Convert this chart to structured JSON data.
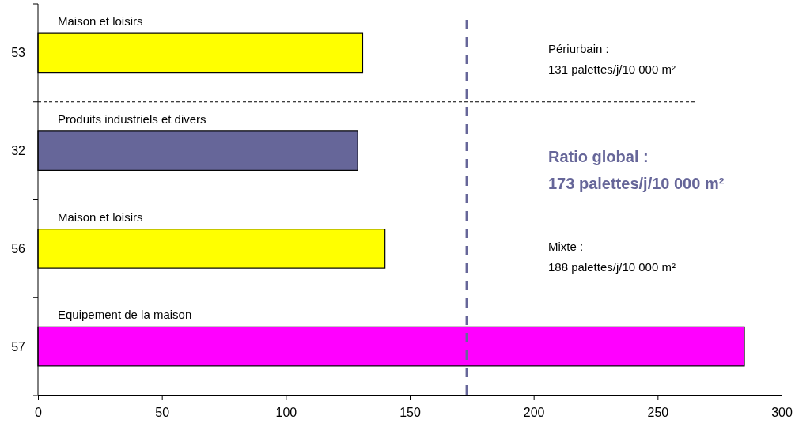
{
  "chart_data": {
    "type": "bar",
    "orientation": "horizontal",
    "categories": [
      "53",
      "32",
      "56",
      "57"
    ],
    "values": [
      131,
      129,
      140,
      285
    ],
    "colors": [
      "#ffff00",
      "#666699",
      "#ffff00",
      "#ff00ff"
    ],
    "xlim": [
      0,
      300
    ],
    "xticks": [
      0,
      50,
      100,
      150,
      200,
      250,
      300
    ],
    "grid": false,
    "ref_lines": [
      {
        "axis": "x",
        "value": 173,
        "label": "Ratio global  :\n173 palettes/j/10 000 m²",
        "color": "#666699",
        "line_style": "dashed"
      }
    ],
    "annotations": [
      "Maison et loisirs",
      "Produits industriels et divers",
      "Maison et loisirs",
      "Equipement de la maison",
      "Périurbain :\n131 palettes/j/10 000 m²",
      "Mixte  :\n188 palettes/j/10 000 m²"
    ]
  }
}
